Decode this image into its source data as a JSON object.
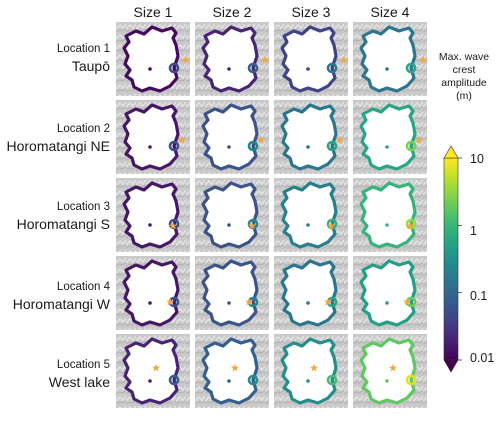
{
  "columns": [
    "Size 1",
    "Size 2",
    "Size 3",
    "Size 4"
  ],
  "rows": [
    {
      "number_label": "Location 1",
      "name": "Taupō"
    },
    {
      "number_label": "Location 2",
      "name": "Horomatangi NE"
    },
    {
      "number_label": "Location 3",
      "name": "Horomatangi S"
    },
    {
      "number_label": "Location 4",
      "name": "Horomatangi W"
    },
    {
      "number_label": "Location 5",
      "name": "West lake"
    }
  ],
  "colorbar": {
    "title_lines": [
      "Max. wave",
      "crest",
      "amplitude",
      "(m)"
    ],
    "ticks": [
      "10",
      "1",
      "0.1",
      "0.01"
    ],
    "scale": "log",
    "range": [
      0.01,
      10
    ],
    "extend": "both",
    "colormap": "viridis"
  },
  "source_marker": {
    "shape": "star",
    "color": "#f4a640"
  },
  "panel_levels": [
    [
      0.012,
      0.02,
      0.04,
      0.15
    ],
    [
      0.015,
      0.06,
      0.15,
      0.6
    ],
    [
      0.015,
      0.06,
      0.2,
      0.9
    ],
    [
      0.015,
      0.06,
      0.15,
      0.5
    ],
    [
      0.02,
      0.08,
      0.3,
      1.8
    ]
  ]
}
